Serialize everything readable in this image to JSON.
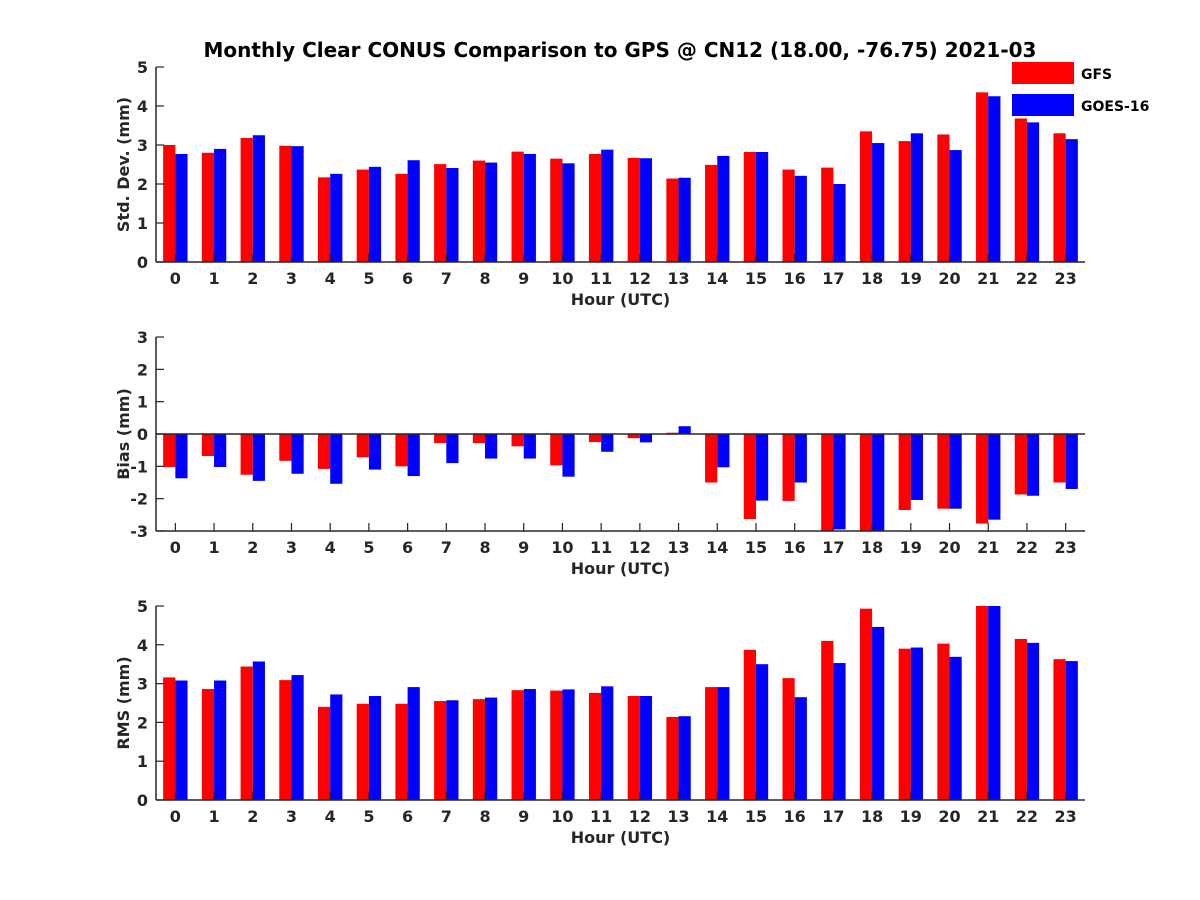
{
  "figure": {
    "title": "Monthly Clear CONUS Comparison to GPS @ CN12 (18.00, -76.75) 2021-03"
  },
  "legend": {
    "placement": "top-right",
    "items": [
      {
        "label": "GFS",
        "color": "#ff0000"
      },
      {
        "label": "GOES-16",
        "color": "#0000ff"
      }
    ]
  },
  "chart_data": [
    {
      "type": "bar",
      "xlabel": "Hour (UTC)",
      "ylabel": "Std. Dev. (mm)",
      "ylim": [
        0,
        5
      ],
      "yticks": [
        0,
        1,
        2,
        3,
        4,
        5
      ],
      "categories": [
        "0",
        "1",
        "2",
        "3",
        "4",
        "5",
        "6",
        "7",
        "8",
        "9",
        "10",
        "11",
        "12",
        "13",
        "14",
        "15",
        "16",
        "17",
        "18",
        "19",
        "20",
        "21",
        "22",
        "23"
      ],
      "grid": false,
      "series": [
        {
          "name": "GFS",
          "color": "#ff0000",
          "values": [
            3.0,
            2.8,
            3.18,
            2.98,
            2.17,
            2.37,
            2.26,
            2.51,
            2.6,
            2.83,
            2.65,
            2.77,
            2.67,
            2.14,
            2.49,
            2.82,
            2.37,
            2.42,
            3.35,
            3.1,
            3.27,
            4.35,
            3.68,
            3.3
          ]
        },
        {
          "name": "GOES-16",
          "color": "#0000ff",
          "values": [
            2.77,
            2.9,
            3.25,
            2.97,
            2.26,
            2.44,
            2.61,
            2.41,
            2.55,
            2.77,
            2.53,
            2.88,
            2.66,
            2.16,
            2.72,
            2.82,
            2.21,
            2.0,
            3.05,
            3.3,
            2.87,
            4.25,
            3.58,
            3.15
          ]
        }
      ]
    },
    {
      "type": "bar",
      "xlabel": "Hour (UTC)",
      "ylabel": "Bias (mm)",
      "ylim": [
        -3,
        3
      ],
      "yticks": [
        -3,
        -2,
        -1,
        0,
        1,
        2,
        3
      ],
      "categories": [
        "0",
        "1",
        "2",
        "3",
        "4",
        "5",
        "6",
        "7",
        "8",
        "9",
        "10",
        "11",
        "12",
        "13",
        "14",
        "15",
        "16",
        "17",
        "18",
        "19",
        "20",
        "21",
        "22",
        "23"
      ],
      "grid": false,
      "series": [
        {
          "name": "GFS",
          "color": "#ff0000",
          "values": [
            -1.02,
            -0.68,
            -1.26,
            -0.83,
            -1.08,
            -0.72,
            -1.0,
            -0.28,
            -0.28,
            -0.38,
            -0.97,
            -0.25,
            -0.13,
            0.04,
            -1.5,
            -2.63,
            -2.07,
            -3.0,
            -3.0,
            -2.35,
            -2.31,
            -2.77,
            -1.87,
            -1.5
          ]
        },
        {
          "name": "GOES-16",
          "color": "#0000ff",
          "values": [
            -1.37,
            -1.02,
            -1.45,
            -1.23,
            -1.54,
            -1.1,
            -1.3,
            -0.9,
            -0.76,
            -0.76,
            -1.32,
            -0.55,
            -0.26,
            0.24,
            -1.03,
            -2.06,
            -1.5,
            -2.95,
            -3.0,
            -2.04,
            -2.31,
            -2.65,
            -1.91,
            -1.7
          ]
        }
      ]
    },
    {
      "type": "bar",
      "xlabel": "Hour (UTC)",
      "ylabel": "RMS (mm)",
      "ylim": [
        0,
        5
      ],
      "yticks": [
        0,
        1,
        2,
        3,
        4,
        5
      ],
      "categories": [
        "0",
        "1",
        "2",
        "3",
        "4",
        "5",
        "6",
        "7",
        "8",
        "9",
        "10",
        "11",
        "12",
        "13",
        "14",
        "15",
        "16",
        "17",
        "18",
        "19",
        "20",
        "21",
        "22",
        "23"
      ],
      "grid": false,
      "series": [
        {
          "name": "GFS",
          "color": "#ff0000",
          "values": [
            3.16,
            2.86,
            3.44,
            3.09,
            2.4,
            2.48,
            2.48,
            2.55,
            2.6,
            2.83,
            2.82,
            2.76,
            2.68,
            2.14,
            2.91,
            3.87,
            3.14,
            4.1,
            4.93,
            3.9,
            4.03,
            5.0,
            4.15,
            3.63
          ]
        },
        {
          "name": "GOES-16",
          "color": "#0000ff",
          "values": [
            3.08,
            3.08,
            3.57,
            3.22,
            2.72,
            2.68,
            2.91,
            2.57,
            2.64,
            2.86,
            2.85,
            2.93,
            2.68,
            2.16,
            2.91,
            3.5,
            2.65,
            3.53,
            4.46,
            3.93,
            3.69,
            5.0,
            4.05,
            3.58
          ]
        }
      ]
    }
  ]
}
